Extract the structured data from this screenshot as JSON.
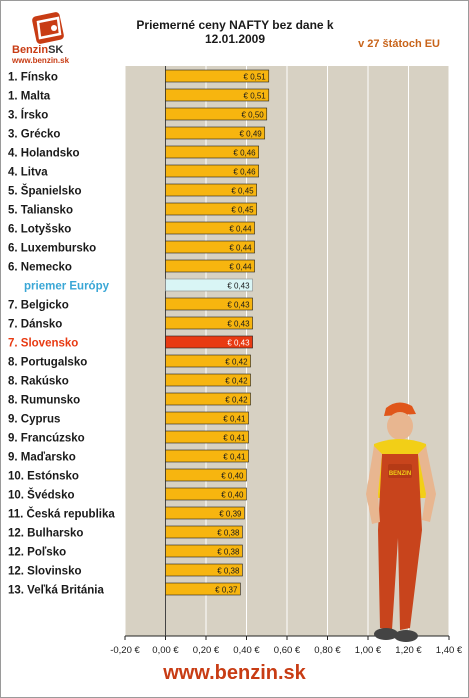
{
  "header": {
    "title": "Priemerné ceny NAFTY bez dane k 12.01.2009",
    "subtitle": "v 27 štátoch EU",
    "logo_word_main": "Benzin",
    "logo_word_suffix": "SK",
    "logo_url": "www.benzin.sk"
  },
  "footer": {
    "url": "www.benzin.sk"
  },
  "mascot": {
    "badge_text": "BENZIN"
  },
  "colors": {
    "bar_default": "#f7b50f",
    "bar_average": "#d9f5f5",
    "bar_highlight": "#e83a12",
    "plot_background": "#d7d1c3",
    "label_highlight": "#e83a12",
    "label_average": "#3aa7d6",
    "accent": "#c83c14"
  },
  "chart_data": {
    "type": "bar",
    "orientation": "horizontal",
    "categories": [
      "1. Fínsko",
      "1. Malta",
      "3. Írsko",
      "3. Grécko",
      "4. Holandsko",
      "4. Litva",
      "5. Španielsko",
      "5. Taliansko",
      "6. Lotyšsko",
      "6. Luxembursko",
      "6. Nemecko",
      "priemer Európy",
      "7. Belgicko",
      "7. Dánsko",
      "7. Slovensko",
      "8. Portugalsko",
      "8. Rakúsko",
      "8. Rumunsko",
      "9. Cyprus",
      "9. Francúzsko",
      "9. Maďarsko",
      "10. Estónsko",
      "10. Švédsko",
      "11. Česká republika",
      "12. Bulharsko",
      "12. Poľsko",
      "12. Slovinsko",
      "13. Veľká Británia"
    ],
    "values": [
      0.51,
      0.51,
      0.5,
      0.49,
      0.46,
      0.46,
      0.45,
      0.45,
      0.44,
      0.44,
      0.44,
      0.43,
      0.43,
      0.43,
      0.43,
      0.42,
      0.42,
      0.42,
      0.41,
      0.41,
      0.41,
      0.4,
      0.4,
      0.39,
      0.38,
      0.38,
      0.38,
      0.37
    ],
    "value_labels": [
      "€ 0,51",
      "€ 0,51",
      "€ 0,50",
      "€ 0,49",
      "€ 0,46",
      "€ 0,46",
      "€ 0,45",
      "€ 0,45",
      "€ 0,44",
      "€ 0,44",
      "€ 0,44",
      "€ 0,43",
      "€ 0,43",
      "€ 0,43",
      "€ 0,43",
      "€ 0,42",
      "€ 0,42",
      "€ 0,42",
      "€ 0,41",
      "€ 0,41",
      "€ 0,41",
      "€ 0,40",
      "€ 0,40",
      "€ 0,39",
      "€ 0,38",
      "€ 0,38",
      "€ 0,38",
      "€ 0,37"
    ],
    "average_index": 11,
    "highlight_index": 14,
    "xlim": [
      -0.2,
      1.4
    ],
    "xticks": [
      -0.2,
      0,
      0.2,
      0.4,
      0.6,
      0.8,
      1.0,
      1.2,
      1.4
    ],
    "xtick_labels": [
      "-0,20 €",
      "0,00 €",
      "0,20 €",
      "0,40 €",
      "0,60 €",
      "0,80 €",
      "1,00 €",
      "1,20 €",
      "1,40 €"
    ],
    "grid": true
  }
}
